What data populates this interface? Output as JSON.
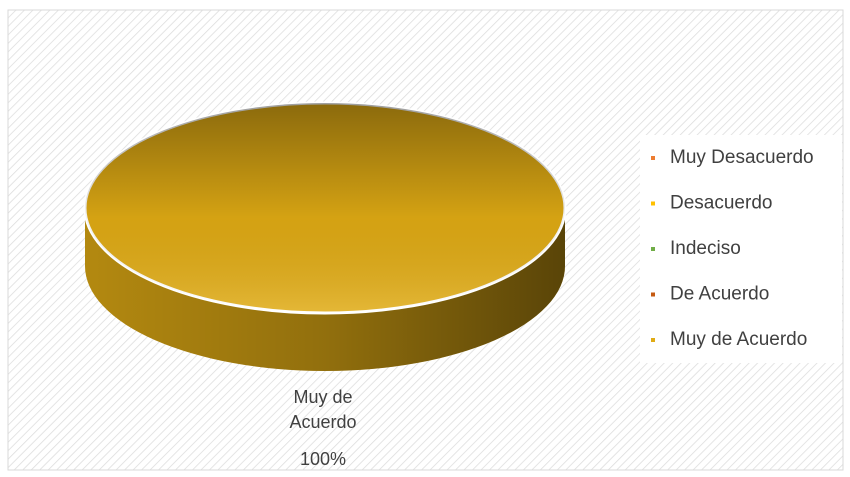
{
  "chart_data": {
    "type": "pie",
    "categories": [
      "Muy Desacuerdo",
      "Desacuerdo",
      "Indeciso",
      "De Acuerdo",
      "Muy de Acuerdo"
    ],
    "values": [
      0,
      0,
      0,
      0,
      100
    ],
    "value_labels": [
      null,
      null,
      null,
      null,
      "100%"
    ],
    "colors": [
      "#ed7d31",
      "#ffc000",
      "#70ad47",
      "#c55a11",
      "#e0ab14"
    ],
    "legend": "right"
  }
}
